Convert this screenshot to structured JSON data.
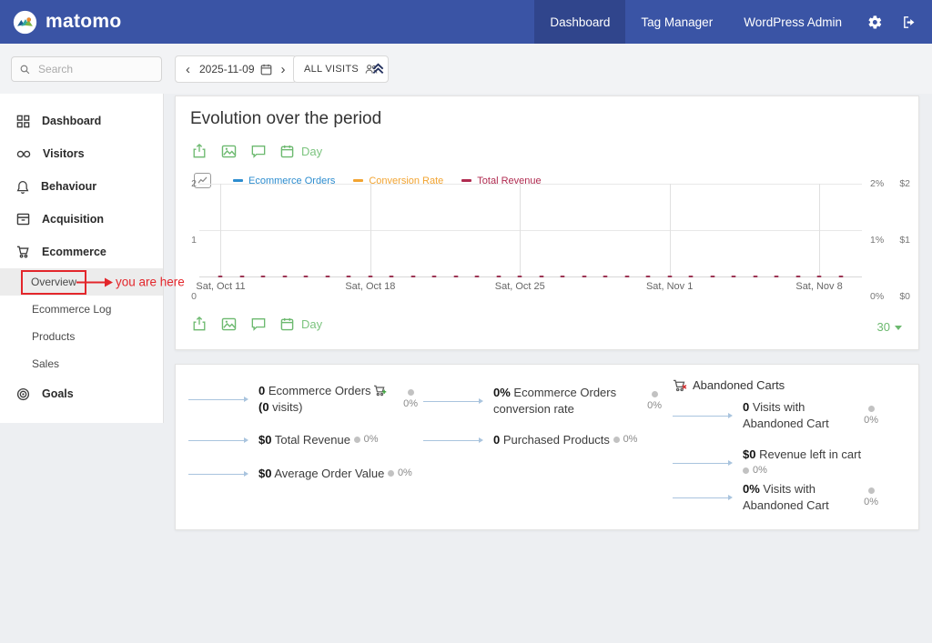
{
  "topnav": {
    "brand": "matomo",
    "items": [
      {
        "label": "Dashboard",
        "active": true
      },
      {
        "label": "Tag Manager",
        "active": false
      },
      {
        "label": "WordPress Admin",
        "active": false
      }
    ],
    "colors": {
      "bar": "#3a54a5",
      "active_item": "#30458c"
    }
  },
  "toolbar": {
    "search_placeholder": "Search",
    "date": "2025-11-09",
    "segment": "ALL VISITS"
  },
  "sidebar": {
    "items": [
      {
        "label": "Dashboard",
        "icon": "grid-icon"
      },
      {
        "label": "Visitors",
        "icon": "visitors-icon"
      },
      {
        "label": "Behaviour",
        "icon": "bell-icon"
      },
      {
        "label": "Acquisition",
        "icon": "archive-icon"
      },
      {
        "label": "Ecommerce",
        "icon": "cart-icon",
        "children": [
          {
            "label": "Overview",
            "active": true
          },
          {
            "label": "Ecommerce Log",
            "active": false
          },
          {
            "label": "Products",
            "active": false
          },
          {
            "label": "Sales",
            "active": false
          }
        ]
      },
      {
        "label": "Goals",
        "icon": "target-icon"
      }
    ],
    "annotation": "you are here",
    "annotation_color": "#e3262b"
  },
  "chart_card": {
    "title": "Evolution over the period",
    "period_label": "Day",
    "range": "30"
  },
  "chart_data": {
    "type": "line",
    "title": "Evolution over the period",
    "period": "Day",
    "num_points": 30,
    "x_tick_indices": [
      0,
      7,
      14,
      21,
      28
    ],
    "x_tick_labels": [
      "Sat, Oct 11",
      "Sat, Oct 18",
      "Sat, Oct 25",
      "Sat, Nov 1",
      "Sat, Nov 8"
    ],
    "left_axis": {
      "ticks_top_to_bottom": [
        "2",
        "1",
        "0"
      ],
      "range": [
        0,
        2
      ]
    },
    "right_axis_percent": {
      "ticks_top_to_bottom": [
        "2%",
        "1%",
        "0%"
      ],
      "range": [
        0,
        2
      ]
    },
    "right_axis_money": {
      "ticks_top_to_bottom": [
        "$2",
        "$1",
        "$0"
      ],
      "range": [
        0,
        2
      ]
    },
    "series": [
      {
        "name": "Ecommerce Orders",
        "color": "#2d8dcf",
        "values": [
          0,
          0,
          0,
          0,
          0,
          0,
          0,
          0,
          0,
          0,
          0,
          0,
          0,
          0,
          0,
          0,
          0,
          0,
          0,
          0,
          0,
          0,
          0,
          0,
          0,
          0,
          0,
          0,
          0,
          0
        ]
      },
      {
        "name": "Conversion Rate",
        "color": "#f2a431",
        "values": [
          0,
          0,
          0,
          0,
          0,
          0,
          0,
          0,
          0,
          0,
          0,
          0,
          0,
          0,
          0,
          0,
          0,
          0,
          0,
          0,
          0,
          0,
          0,
          0,
          0,
          0,
          0,
          0,
          0,
          0
        ]
      },
      {
        "name": "Total Revenue",
        "color": "#b02b50",
        "values": [
          0,
          0,
          0,
          0,
          0,
          0,
          0,
          0,
          0,
          0,
          0,
          0,
          0,
          0,
          0,
          0,
          0,
          0,
          0,
          0,
          0,
          0,
          0,
          0,
          0,
          0,
          0,
          0,
          0,
          0
        ]
      }
    ],
    "marker_color": "#9c3554",
    "grid": true,
    "legend_position": "top"
  },
  "stats": {
    "col1": [
      {
        "value": "0",
        "label": "Ecommerce Orders",
        "icon": "cart-add-icon",
        "suffix_bold": "(0",
        "suffix_rest": " visits)",
        "badge": "0%"
      },
      {
        "value": "$0",
        "label": "Total Revenue",
        "badge": "0%"
      },
      {
        "value": "$0",
        "label": "Average Order Value",
        "badge": "0%"
      }
    ],
    "col2": [
      {
        "value": "0%",
        "label": "Ecommerce Orders conversion rate",
        "badge": "0%"
      },
      {
        "value": "0",
        "label": "Purchased Products",
        "badge": "0%"
      }
    ],
    "col3": {
      "header": "Abandoned Carts",
      "icon": "cart-remove-icon",
      "items": [
        {
          "value": "0",
          "label": "Visits with Abandoned Cart",
          "badge": "0%"
        },
        {
          "value": "$0",
          "label": "Revenue left in cart",
          "badge": "0%"
        },
        {
          "value": "0%",
          "label": "Visits with Abandoned Cart",
          "badge": "0%"
        }
      ]
    }
  }
}
